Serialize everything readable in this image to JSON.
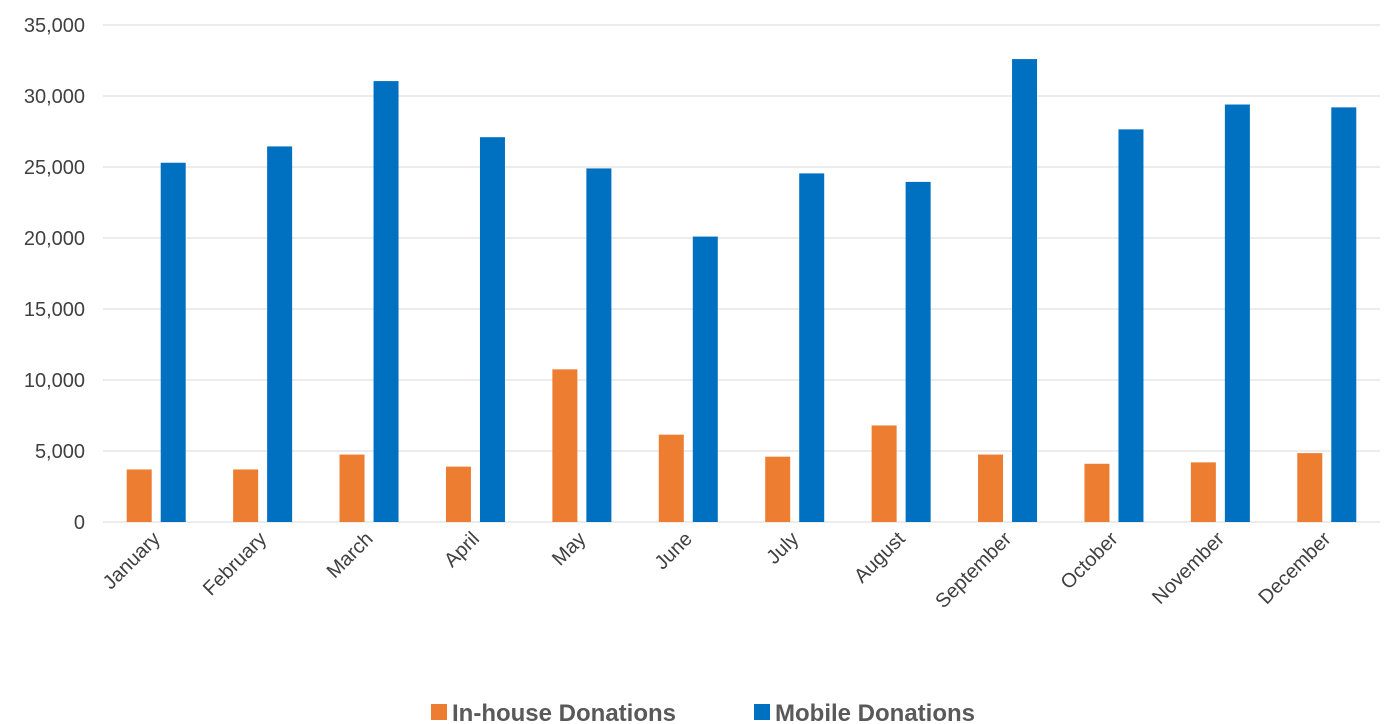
{
  "chart_data": {
    "type": "bar",
    "categories": [
      "January",
      "February",
      "March",
      "April",
      "May",
      "June",
      "July",
      "August",
      "September",
      "October",
      "November",
      "December"
    ],
    "series": [
      {
        "name": "In-house Donations",
        "color": "#ED7D31",
        "values": [
          3700,
          3700,
          4750,
          3900,
          10750,
          6150,
          4600,
          6800,
          4750,
          4100,
          4200,
          4850
        ]
      },
      {
        "name": "Mobile Donations",
        "color": "#0070C0",
        "values": [
          25300,
          26450,
          31050,
          27100,
          24900,
          20100,
          24550,
          23950,
          32600,
          27650,
          29400,
          29200
        ]
      }
    ],
    "ylim": [
      0,
      35000
    ],
    "yticks": [
      "0",
      "5,000",
      "10,000",
      "15,000",
      "20,000",
      "25,000",
      "30,000",
      "35,000"
    ],
    "grid": true,
    "legend_position": "bottom",
    "title": "",
    "xlabel": "",
    "ylabel": ""
  }
}
